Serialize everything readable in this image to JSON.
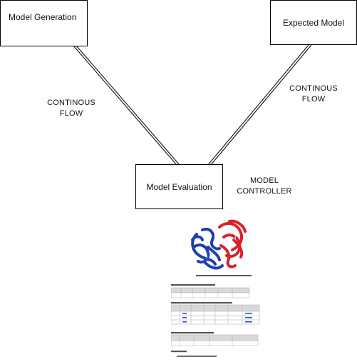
{
  "nodes": {
    "generation": "Model Generation",
    "expected": "Expected Model",
    "evaluation": "Model Evaluation"
  },
  "labels": {
    "flow_left": [
      "CONTINOUS",
      "FLOW"
    ],
    "flow_right": [
      "CONTINOUS",
      "FLOW"
    ],
    "controller": [
      "MODEL",
      "CONTROLLER"
    ]
  },
  "colors": {
    "chain_a": "#1f3fae",
    "chain_b": "#d8222b",
    "header": "#d9d9d9"
  }
}
